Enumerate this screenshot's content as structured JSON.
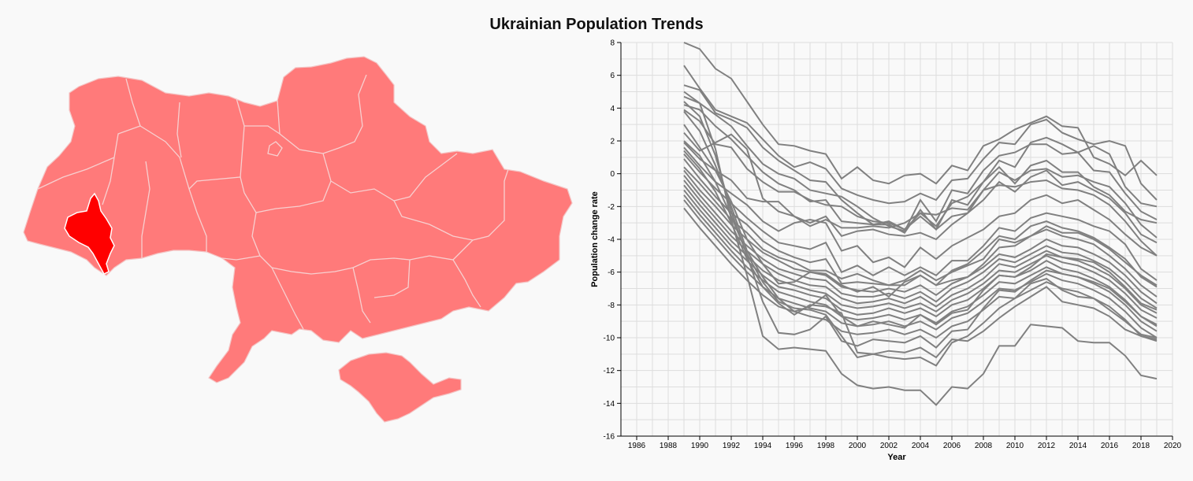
{
  "title": "Ukrainian Population Trends",
  "colors": {
    "region_fill": "#ff7a7a",
    "region_selected": "#ff0000",
    "line": "#808080",
    "grid": "#dddddd",
    "background": "#f9f9f9"
  },
  "chart_data": {
    "type": "line",
    "title": "",
    "xlabel": "Year",
    "ylabel": "Population change rate",
    "xlim": [
      1985,
      2020
    ],
    "ylim": [
      -16,
      8
    ],
    "grid": true,
    "x_ticks": [
      1986,
      1988,
      1990,
      1992,
      1994,
      1996,
      1998,
      2000,
      2002,
      2004,
      2006,
      2008,
      2010,
      2012,
      2014,
      2016,
      2018,
      2020
    ],
    "y_ticks": [
      -16,
      -14,
      -12,
      -10,
      -8,
      -6,
      -4,
      -2,
      0,
      2,
      4,
      6,
      8
    ],
    "x": [
      1989,
      1990,
      1991,
      1992,
      1993,
      1994,
      1995,
      1996,
      1997,
      1998,
      1999,
      2000,
      2001,
      2002,
      2003,
      2004,
      2005,
      2006,
      2007,
      2008,
      2009,
      2010,
      2011,
      2012,
      2013,
      2014,
      2015,
      2016,
      2017,
      2018,
      2019
    ],
    "series": [
      {
        "values": [
          8.0,
          7.6,
          6.4,
          5.8,
          4.4,
          3.0,
          1.8,
          1.7,
          1.4,
          1.2,
          -0.3,
          0.4,
          -0.4,
          -0.6,
          -0.1,
          0.0,
          -0.6,
          0.5,
          0.2,
          1.7,
          2.1,
          2.7,
          3.1,
          3.5,
          2.9,
          2.8,
          1.0,
          0.6,
          -0.1,
          0.8,
          -0.1
        ]
      },
      {
        "values": [
          6.6,
          5.2,
          3.9,
          3.5,
          3.1,
          2.1,
          1.1,
          0.4,
          0.7,
          0.3,
          -0.9,
          -1.3,
          -1.6,
          -1.8,
          -1.7,
          -1.2,
          -1.6,
          -0.4,
          -0.3,
          0.9,
          1.9,
          1.8,
          3.0,
          3.3,
          2.5,
          2.1,
          1.8,
          2.0,
          1.7,
          -0.6,
          -1.6
        ]
      },
      {
        "values": [
          5.4,
          5.1,
          3.7,
          3.3,
          2.8,
          1.6,
          0.8,
          0.2,
          -0.4,
          -0.5,
          -1.6,
          -2.4,
          -3.1,
          -2.9,
          -3.4,
          -2.4,
          -3.2,
          -1.8,
          -1.4,
          -0.5,
          0.8,
          0.4,
          1.9,
          2.2,
          1.8,
          1.3,
          1.7,
          1.2,
          -0.8,
          -1.8,
          -2.0
        ]
      },
      {
        "values": [
          4.7,
          4.3,
          3.6,
          2.9,
          1.7,
          0.6,
          0.0,
          -0.3,
          -1.0,
          -1.2,
          -1.4,
          -2.0,
          -2.7,
          -3.2,
          -3.5,
          -1.6,
          -2.9,
          -1.0,
          -1.2,
          0.2,
          1.1,
          1.3,
          1.8,
          1.8,
          1.2,
          1.3,
          0.2,
          0.1,
          -1.2,
          -2.3,
          -2.8
        ]
      },
      {
        "values": [
          4.2,
          3.9,
          2.9,
          2.1,
          1.1,
          0.1,
          -0.6,
          -1.0,
          -1.7,
          -1.6,
          -2.9,
          -3.0,
          -3.1,
          -3.1,
          -3.6,
          -2.2,
          -3.4,
          -1.6,
          -1.9,
          -0.5,
          0.4,
          -0.6,
          0.5,
          0.8,
          0.1,
          0.1,
          -0.8,
          -1.3,
          -2.3,
          -2.8,
          -3.0
        ]
      },
      {
        "values": [
          3.9,
          3.2,
          1.8,
          1.6,
          0.3,
          -0.5,
          -1.1,
          -1.1,
          -1.6,
          -1.9,
          -2.0,
          -2.6,
          -2.9,
          -3.0,
          -3.4,
          -2.6,
          -3.4,
          -2.6,
          -2.4,
          -1.0,
          0.1,
          -0.4,
          0.2,
          0.3,
          -0.2,
          -0.1,
          -0.5,
          -0.8,
          -1.8,
          -3.1,
          -3.9
        ]
      },
      {
        "values": [
          2.5,
          1.4,
          1.9,
          2.4,
          1.5,
          -1.5,
          -2.3,
          -2.6,
          -3.0,
          -2.6,
          -3.8,
          -3.5,
          -3.4,
          -3.7,
          -3.8,
          -3.6,
          -4.0,
          -3.1,
          -2.4,
          -1.6,
          -0.5,
          -1.1,
          -0.2,
          0.2,
          -0.7,
          -0.5,
          -1.0,
          -1.5,
          -2.4,
          -3.7,
          -4.2
        ]
      },
      {
        "values": [
          1.9,
          0.9,
          0.2,
          -0.4,
          -1.5,
          -1.7,
          -1.7,
          -2.6,
          -3.2,
          -2.8,
          -3.3,
          -3.3,
          -3.2,
          -3.3,
          -3.0,
          -2.4,
          -2.5,
          -2.1,
          -2.2,
          -1.0,
          -0.7,
          -0.8,
          -0.5,
          -0.4,
          -0.9,
          -1.0,
          -1.3,
          -1.9,
          -2.9,
          -4.1,
          -5.0
        ]
      },
      {
        "values": [
          1.6,
          0.5,
          -0.5,
          -1.2,
          -1.9,
          -2.9,
          -3.5,
          -3.0,
          -2.8,
          -3.0,
          -4.7,
          -4.4,
          -5.4,
          -5.1,
          -5.7,
          -4.5,
          -5.2,
          -4.4,
          -3.9,
          -3.4,
          -2.6,
          -2.4,
          -1.6,
          -1.3,
          -1.8,
          -1.6,
          -2.2,
          -2.8,
          -3.7,
          -4.5,
          -5.0
        ]
      },
      {
        "values": [
          1.2,
          0.1,
          -0.9,
          -1.8,
          -2.7,
          -3.5,
          -4.2,
          -4.4,
          -4.6,
          -4.2,
          -6.0,
          -5.6,
          -6.2,
          -5.7,
          -6.2,
          -5.7,
          -6.2,
          -5.3,
          -5.3,
          -4.4,
          -3.3,
          -3.5,
          -2.7,
          -2.4,
          -2.6,
          -2.8,
          -3.2,
          -3.5,
          -4.3,
          -5.8,
          -6.5
        ]
      },
      {
        "values": [
          0.9,
          -0.3,
          -1.4,
          -2.4,
          -3.1,
          -4.1,
          -4.7,
          -5.1,
          -5.4,
          -5.2,
          -6.7,
          -6.6,
          -6.7,
          -6.8,
          -6.8,
          -6.2,
          -6.8,
          -5.9,
          -5.5,
          -4.7,
          -3.8,
          -4.0,
          -3.2,
          -2.9,
          -3.3,
          -3.5,
          -3.9,
          -4.5,
          -5.2,
          -6.3,
          -6.9
        ]
      },
      {
        "values": [
          0.4,
          -0.6,
          -1.7,
          -2.8,
          -3.6,
          -4.6,
          -5.1,
          -5.4,
          -5.9,
          -5.9,
          -6.4,
          -6.1,
          -6.5,
          -6.8,
          -6.5,
          -5.9,
          -6.5,
          -6.0,
          -5.6,
          -5.2,
          -4.0,
          -4.2,
          -3.8,
          -3.4,
          -3.8,
          -4.0,
          -4.3,
          -5.0,
          -5.8,
          -6.8,
          -7.5
        ]
      },
      {
        "values": [
          0.2,
          -1.0,
          -2.0,
          -3.1,
          -4.0,
          -4.8,
          -5.3,
          -5.8,
          -6.0,
          -6.2,
          -6.9,
          -7.1,
          -7.2,
          -7.0,
          -7.2,
          -6.8,
          -7.4,
          -6.7,
          -6.3,
          -5.7,
          -4.9,
          -5.1,
          -4.6,
          -4.0,
          -4.4,
          -4.5,
          -4.9,
          -5.4,
          -6.2,
          -7.2,
          -7.9
        ]
      },
      {
        "values": [
          -0.1,
          -1.3,
          -2.4,
          -3.5,
          -4.4,
          -5.2,
          -5.8,
          -6.1,
          -6.4,
          -6.5,
          -7.3,
          -7.5,
          -7.5,
          -7.3,
          -7.6,
          -7.2,
          -7.8,
          -7.0,
          -6.6,
          -6.0,
          -5.2,
          -5.4,
          -4.9,
          -4.4,
          -4.8,
          -4.9,
          -5.3,
          -5.8,
          -6.6,
          -7.6,
          -8.2
        ]
      },
      {
        "values": [
          -0.4,
          -1.6,
          -2.7,
          -3.8,
          -4.7,
          -5.5,
          -6.1,
          -6.5,
          -6.8,
          -6.9,
          -7.6,
          -7.9,
          -7.8,
          -7.6,
          -7.9,
          -7.5,
          -8.1,
          -7.4,
          -7.0,
          -6.4,
          -5.5,
          -5.7,
          -5.2,
          -4.7,
          -5.1,
          -5.3,
          -5.7,
          -6.2,
          -7.0,
          -8.0,
          -8.5
        ]
      },
      {
        "values": [
          -0.7,
          -1.9,
          -3.0,
          -4.1,
          -5.0,
          -5.9,
          -6.5,
          -6.8,
          -7.1,
          -7.3,
          -8.0,
          -8.2,
          -8.1,
          -7.9,
          -8.2,
          -7.9,
          -8.4,
          -7.7,
          -7.3,
          -6.7,
          -5.9,
          -6.0,
          -5.5,
          -5.0,
          -5.4,
          -5.6,
          -6.0,
          -6.5,
          -7.3,
          -8.3,
          -8.8
        ]
      },
      {
        "values": [
          -1.0,
          -2.2,
          -3.3,
          -4.4,
          -5.3,
          -6.2,
          -6.9,
          -7.1,
          -7.4,
          -7.6,
          -8.3,
          -8.6,
          -8.5,
          -8.2,
          -8.5,
          -8.2,
          -8.7,
          -8.0,
          -7.7,
          -7.0,
          -6.2,
          -6.3,
          -5.9,
          -5.3,
          -5.8,
          -6.0,
          -6.4,
          -6.9,
          -7.7,
          -8.7,
          -9.2
        ]
      },
      {
        "values": [
          -1.3,
          -2.5,
          -3.6,
          -4.7,
          -5.7,
          -6.5,
          -7.2,
          -7.5,
          -7.8,
          -8.0,
          -8.7,
          -8.9,
          -8.8,
          -8.6,
          -8.9,
          -8.6,
          -9.1,
          -8.4,
          -8.1,
          -7.4,
          -6.6,
          -6.7,
          -6.2,
          -5.7,
          -6.1,
          -6.3,
          -6.7,
          -7.2,
          -8.0,
          -9.0,
          -9.6
        ]
      },
      {
        "values": [
          -1.6,
          -2.8,
          -3.9,
          -5.0,
          -6.0,
          -6.9,
          -7.6,
          -7.9,
          -8.2,
          -8.4,
          -9.1,
          -9.3,
          -9.2,
          -9.0,
          -9.3,
          -9.0,
          -9.5,
          -8.8,
          -8.5,
          -7.8,
          -7.0,
          -7.1,
          -6.6,
          -6.1,
          -6.5,
          -6.7,
          -7.1,
          -7.6,
          -8.4,
          -9.4,
          -10.0
        ]
      },
      {
        "values": [
          -2.1,
          -3.3,
          -4.4,
          -5.5,
          -6.5,
          -7.4,
          -8.1,
          -8.4,
          -8.7,
          -8.9,
          -9.6,
          -9.8,
          -9.7,
          -9.5,
          -9.8,
          -9.5,
          -10.0,
          -9.3,
          -9.0,
          -8.3,
          -7.5,
          -7.6,
          -7.1,
          -6.6,
          -7.0,
          -7.2,
          -7.6,
          -8.1,
          -8.9,
          -9.9,
          -10.2
        ]
      },
      {
        "values": [
          3.0,
          1.6,
          0.2,
          -1.7,
          -4.0,
          -5.5,
          -6.7,
          -6.6,
          -6.0,
          -6.1,
          -6.8,
          -7.2,
          -6.9,
          -7.5,
          -6.6,
          -6.2,
          -6.8,
          -6.5,
          -6.3,
          -5.5,
          -4.5,
          -4.4,
          -3.8,
          -3.2,
          -3.6,
          -3.6,
          -4.0,
          -4.6,
          -5.4,
          -6.2,
          -6.8
        ]
      },
      {
        "values": [
          3.8,
          2.6,
          0.5,
          -2.0,
          -4.7,
          -6.3,
          -7.6,
          -8.4,
          -8.1,
          -7.4,
          -8.7,
          -9.3,
          -9.0,
          -9.2,
          -9.4,
          -8.6,
          -9.2,
          -8.5,
          -8.3,
          -7.1,
          -6.2,
          -6.3,
          -5.7,
          -4.9,
          -5.1,
          -5.2,
          -5.4,
          -6.0,
          -6.9,
          -7.9,
          -8.3
        ]
      },
      {
        "values": [
          4.4,
          3.5,
          1.1,
          -2.3,
          -5.0,
          -7.8,
          -9.7,
          -9.8,
          -9.5,
          -8.7,
          -10.2,
          -10.5,
          -10.1,
          -10.2,
          -10.3,
          -9.9,
          -10.6,
          -9.6,
          -9.5,
          -8.2,
          -7.1,
          -7.2,
          -6.5,
          -5.9,
          -6.1,
          -6.3,
          -6.6,
          -7.0,
          -7.8,
          -8.7,
          -9.3
        ]
      },
      {
        "values": [
          5.0,
          4.3,
          1.5,
          -2.8,
          -6.2,
          -9.9,
          -10.7,
          -10.6,
          -10.7,
          -10.8,
          -12.2,
          -12.9,
          -13.1,
          -13.0,
          -13.2,
          -13.2,
          -14.1,
          -13.0,
          -13.1,
          -12.2,
          -10.5,
          -10.5,
          -9.2,
          -9.3,
          -9.4,
          -10.2,
          -10.3,
          -10.3,
          -11.1,
          -12.3,
          -12.5
        ]
      },
      {
        "values": [
          2.0,
          1.1,
          -0.5,
          -2.6,
          -4.9,
          -6.6,
          -7.8,
          -8.2,
          -8.3,
          -8.6,
          -9.9,
          -11.2,
          -11.0,
          -10.8,
          -10.9,
          -10.6,
          -11.2,
          -10.1,
          -10.2,
          -9.6,
          -8.8,
          -8.1,
          -7.5,
          -6.9,
          -7.8,
          -8.0,
          -8.2,
          -8.7,
          -9.5,
          -9.9,
          -10.1
        ]
      },
      {
        "values": [
          1.4,
          0.3,
          -1.1,
          -3.0,
          -5.2,
          -6.9,
          -7.9,
          -8.6,
          -8.0,
          -8.1,
          -8.5,
          -10.9,
          -11.0,
          -11.2,
          -11.3,
          -11.2,
          -11.7,
          -10.3,
          -9.9,
          -9.1,
          -8.2,
          -7.6,
          -6.7,
          -6.4,
          -7.1,
          -7.5,
          -7.6,
          -8.3,
          -9.0,
          -9.8,
          -10.0
        ]
      }
    ]
  }
}
